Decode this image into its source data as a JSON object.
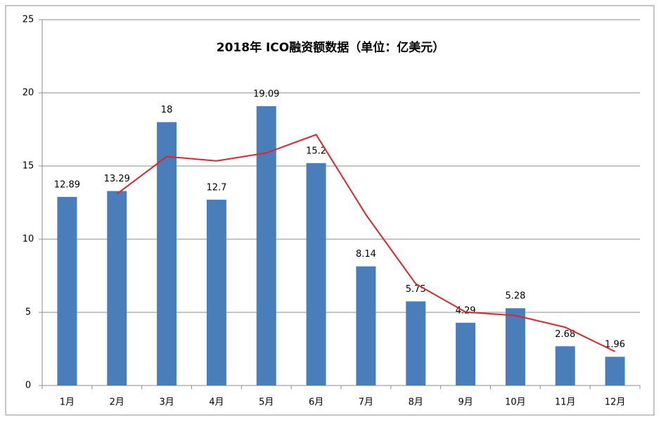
{
  "chart_data": {
    "type": "bar",
    "title": "2018年 ICO融资额数据（单位：亿美元）",
    "categories": [
      "1月",
      "2月",
      "3月",
      "4月",
      "5月",
      "6月",
      "7月",
      "8月",
      "9月",
      "10月",
      "11月",
      "12月"
    ],
    "series": [
      {
        "color": "#4a7ebb",
        "values": [
          12.89,
          13.29,
          18,
          12.7,
          19.09,
          15.2,
          8.14,
          5.75,
          4.29,
          5.28,
          2.68,
          1.96
        ]
      },
      {
        "type": "line",
        "color": "#e0252b",
        "values": [
          null,
          13.09,
          15.645,
          15.35,
          15.895,
          17.145,
          11.67,
          6.945,
          5.02,
          4.785,
          3.98,
          2.32
        ]
      }
    ],
    "ylim": [
      0,
      25
    ],
    "yticks": [
      0,
      5,
      10,
      15,
      20,
      25
    ],
    "grid": true
  }
}
